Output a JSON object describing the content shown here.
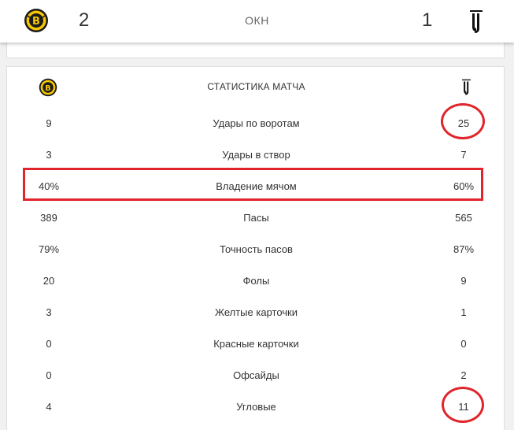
{
  "scoreboard": {
    "home_score": "2",
    "status": "ОКН",
    "away_score": "1",
    "home_logo_icon": "young-boys-crest-icon",
    "away_logo_icon": "juventus-logo-icon"
  },
  "stats": {
    "title": "СТАТИСТИКА МАТЧА",
    "rows": [
      {
        "label": "Удары по воротам",
        "home": "9",
        "away": "25"
      },
      {
        "label": "Удары в створ",
        "home": "3",
        "away": "7"
      },
      {
        "label": "Владение мячом",
        "home": "40%",
        "away": "60%"
      },
      {
        "label": "Пасы",
        "home": "389",
        "away": "565"
      },
      {
        "label": "Точность пасов",
        "home": "79%",
        "away": "87%"
      },
      {
        "label": "Фолы",
        "home": "20",
        "away": "9"
      },
      {
        "label": "Желтые карточки",
        "home": "3",
        "away": "1"
      },
      {
        "label": "Красные карточки",
        "home": "0",
        "away": "0"
      },
      {
        "label": "Офсайды",
        "home": "0",
        "away": "2"
      },
      {
        "label": "Угловые",
        "home": "4",
        "away": "11"
      }
    ]
  },
  "colors": {
    "annotation_red": "#e0252b",
    "yb_yellow": "#f6c700",
    "yb_black": "#1a1a1a"
  }
}
